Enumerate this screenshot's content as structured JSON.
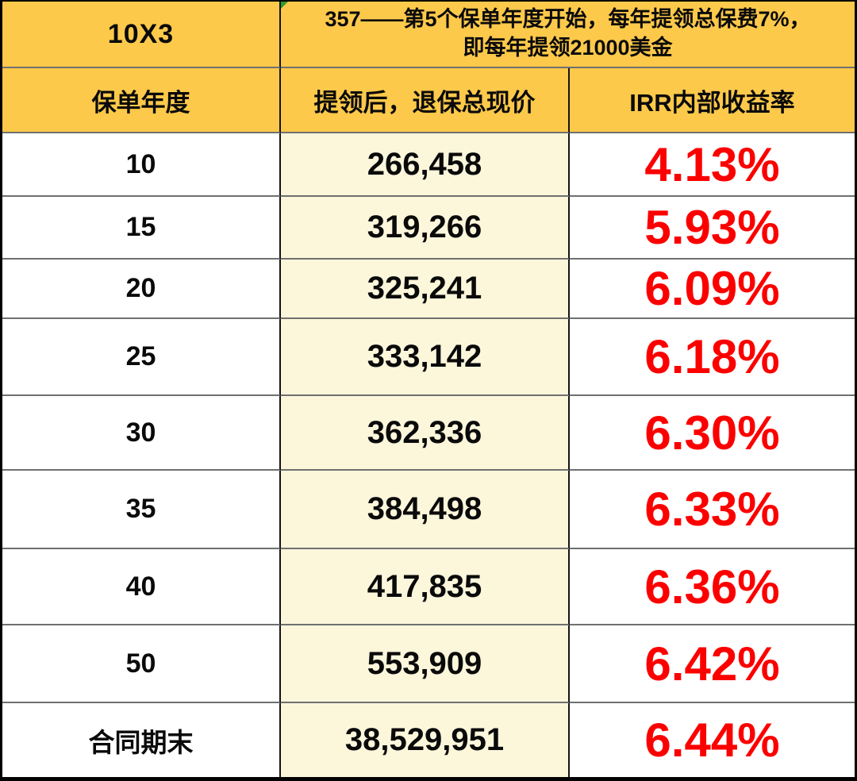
{
  "header": {
    "corner_label": "10X3",
    "note_line1": "357——第5个保单年度开始，每年提领总保费7%，",
    "note_line2": "即每年提领21000美金",
    "error_indicator": "green-triangle-icon"
  },
  "chart_data": {
    "type": "table",
    "corner_label": "10X3",
    "header_note": "357——第5个保单年度开始，每年提领总保费7%，即每年提领21000美金",
    "columns": [
      "保单年度",
      "提领后，退保总现价",
      "IRR内部收益率"
    ],
    "rows": [
      [
        "10",
        "266,458",
        "4.13%"
      ],
      [
        "15",
        "319,266",
        "5.93%"
      ],
      [
        "20",
        "325,241",
        "6.09%"
      ],
      [
        "25",
        "333,142",
        "6.18%"
      ],
      [
        "30",
        "362,336",
        "6.30%"
      ],
      [
        "35",
        "384,498",
        "6.33%"
      ],
      [
        "40",
        "417,835",
        "6.36%"
      ],
      [
        "50",
        "553,909",
        "6.42%"
      ],
      [
        "合同期末",
        "38,529,951",
        "6.44%"
      ]
    ]
  },
  "colors": {
    "header_gold": "#FDC94B",
    "value_column_cream": "#FCF6DB",
    "irr_red": "#FC0000",
    "grid_horizontal_gray": "#707070",
    "grid_vertical_black": "#141414",
    "error_indicator_green": "#2E9B2E"
  }
}
